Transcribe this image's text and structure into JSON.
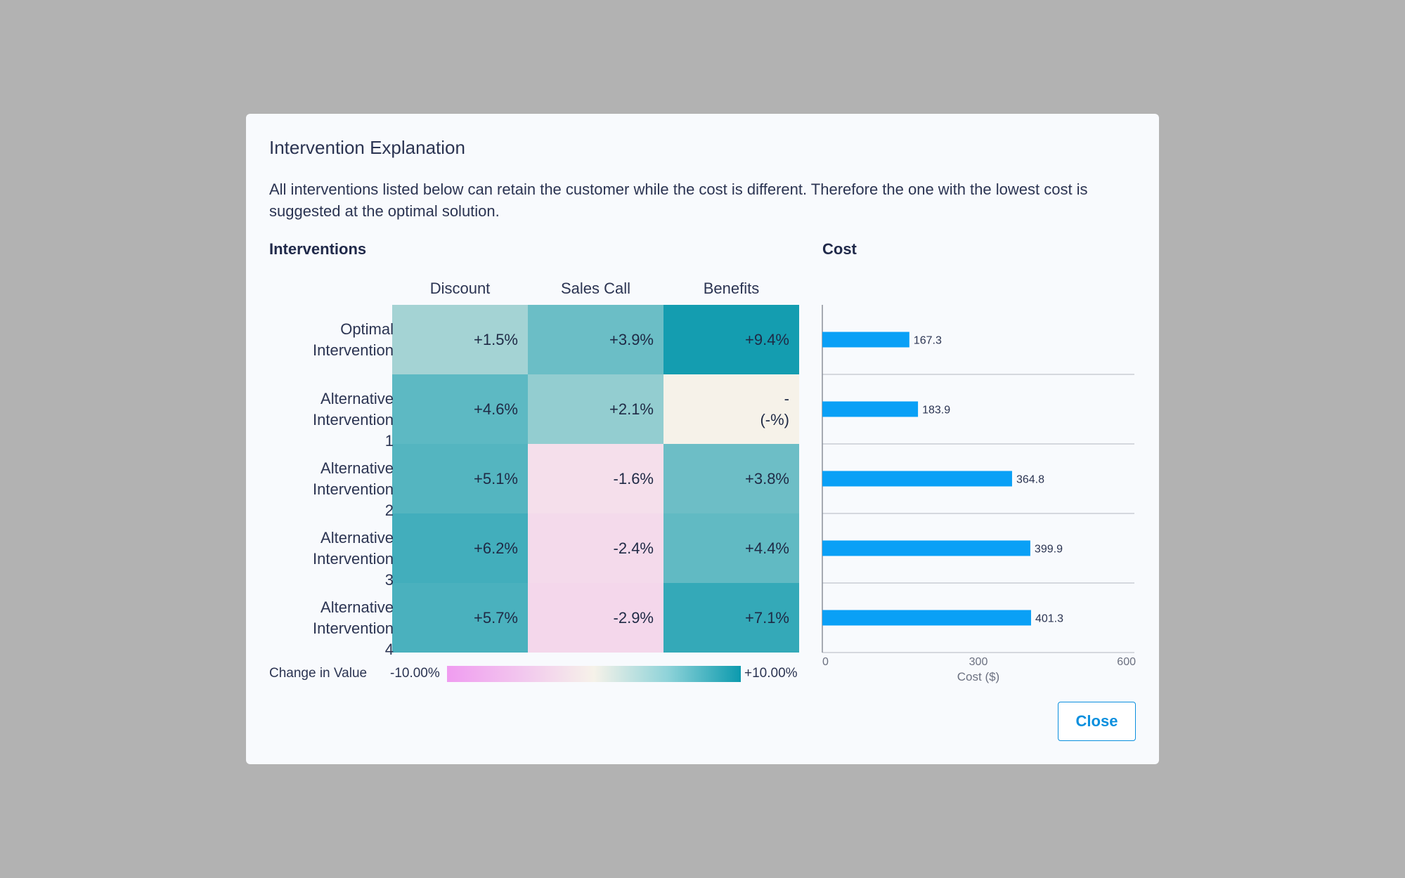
{
  "dialog": {
    "title": "Intervention Explanation",
    "description": "All interventions listed below can retain the customer while the cost is different. Therefore the one with the lowest cost is suggested at the optimal solution.",
    "close_label": "Close"
  },
  "interventions": {
    "title": "Interventions",
    "columns": [
      "Discount",
      "Sales Call",
      "Benefits"
    ],
    "rows": [
      {
        "label": "Optimal Intervention",
        "values": [
          1.5,
          3.9,
          9.4
        ],
        "display": [
          "+1.5%",
          "+3.9%",
          "+9.4%"
        ]
      },
      {
        "label": "Alternative Intervention 1",
        "values": [
          4.6,
          2.1,
          null
        ],
        "display": [
          "+4.6%",
          "+2.1%",
          "-\n(-%)"
        ]
      },
      {
        "label": "Alternative Intervention 2",
        "values": [
          5.1,
          -1.6,
          3.8
        ],
        "display": [
          "+5.1%",
          "-1.6%",
          "+3.8%"
        ]
      },
      {
        "label": "Alternative Intervention 3",
        "values": [
          6.2,
          -2.4,
          4.4
        ],
        "display": [
          "+6.2%",
          "-2.4%",
          "+4.4%"
        ]
      },
      {
        "label": "Alternative Intervention 4",
        "values": [
          5.7,
          -2.9,
          7.1
        ],
        "display": [
          "+5.7%",
          "-2.9%",
          "+7.1%"
        ]
      }
    ],
    "legend": {
      "label": "Change in Value",
      "min_label": "-10.00%",
      "max_label": "+10.00%",
      "min_color": "#f09cf0",
      "mid_color": "#f6f2e9",
      "max_color": "#0c9aae"
    }
  },
  "chart_data": {
    "type": "bar",
    "orientation": "horizontal",
    "title": "Cost",
    "xlabel": "Cost ($)",
    "xlim": [
      0,
      600
    ],
    "xticks": [
      "0",
      "300",
      "600"
    ],
    "categories": [
      "Optimal Intervention",
      "Alternative Intervention 1",
      "Alternative Intervention 2",
      "Alternative Intervention 3",
      "Alternative Intervention 4"
    ],
    "values": [
      167.3,
      183.9,
      364.8,
      399.9,
      401.3
    ],
    "value_labels": [
      "167.3",
      "183.9",
      "364.8",
      "399.9",
      "401.3"
    ],
    "bar_color": "#0aa0f6",
    "grid": "horizontal separators"
  }
}
